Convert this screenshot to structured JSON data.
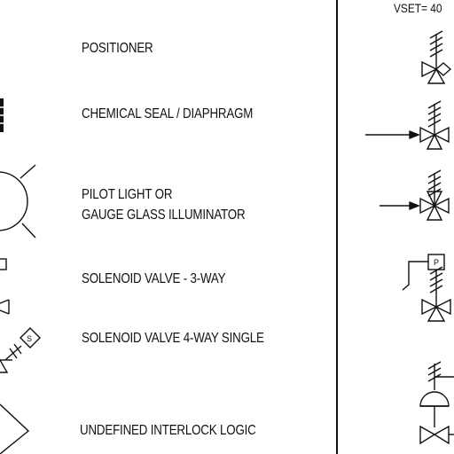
{
  "legend": {
    "entries": [
      {
        "label": "POSITIONER",
        "icon": "positioner-icon"
      },
      {
        "label": "CHEMICAL SEAL / DIAPHRAGM",
        "icon": "chemical-seal-icon"
      },
      {
        "label_line1": "PILOT LIGHT OR",
        "label_line2": "GAUGE GLASS ILLUMINATOR",
        "icon": "pilot-light-icon"
      },
      {
        "label": "SOLENOID VALVE - 3-WAY",
        "icon": "solenoid-valve-3-way-icon"
      },
      {
        "label": "SOLENOID VALVE 4-WAY SINGLE",
        "icon": "solenoid-valve-4-way-icon"
      },
      {
        "label": "UNDEFINED INTERLOCK LOGIC",
        "icon": "interlock-logic-icon"
      }
    ],
    "vset_label": "VSET= 40",
    "p_tag": "P",
    "s_tag": "S"
  }
}
